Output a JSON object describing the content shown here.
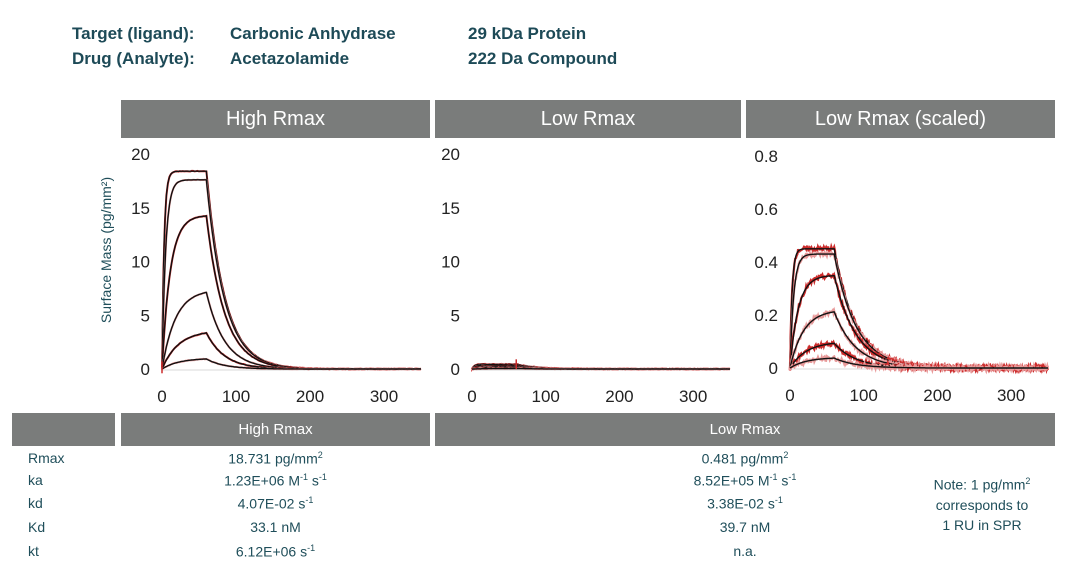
{
  "header": {
    "target_label": "Target (ligand):",
    "target_value": "Carbonic Anhydrase",
    "target_size": "29 kDa Protein",
    "drug_label": "Drug (Analyte):",
    "drug_value": "Acetazolamide",
    "drug_size": "222 Da Compound"
  },
  "y_axis_label": "Surface Mass (pg/mm²)",
  "chart_data": [
    {
      "type": "line",
      "title": "High Rmax",
      "xlabel": "",
      "ylabel": "Surface Mass (pg/mm²)",
      "xlim": [
        0,
        350
      ],
      "ylim": [
        0,
        20
      ],
      "xticks": [
        "0",
        "100",
        "200",
        "300"
      ],
      "yticks": [
        "0",
        "5",
        "10",
        "15",
        "20"
      ],
      "assoc_end": 60,
      "kd": 0.0407,
      "curves": [
        {
          "plateau": 18.4,
          "rate": 0.35
        },
        {
          "plateau": 17.6,
          "rate": 0.2
        },
        {
          "plateau": 14.3,
          "rate": 0.09
        },
        {
          "plateau": 7.4,
          "rate": 0.055
        },
        {
          "plateau": 3.6,
          "rate": 0.045
        },
        {
          "plateau": 1.0,
          "rate": 0.045
        }
      ]
    },
    {
      "type": "line",
      "title": "Low Rmax",
      "xlabel": "",
      "ylabel": "",
      "xlim": [
        0,
        350
      ],
      "ylim": [
        0,
        20
      ],
      "xticks": [
        "0",
        "100",
        "200",
        "300"
      ],
      "yticks": [
        "0",
        "5",
        "10",
        "15",
        "20"
      ],
      "assoc_end": 60,
      "kd": 0.0338,
      "curves": [
        {
          "plateau": 0.45,
          "rate": 0.3
        },
        {
          "plateau": 0.42,
          "rate": 0.15
        },
        {
          "plateau": 0.3,
          "rate": 0.08
        },
        {
          "plateau": 0.2,
          "rate": 0.05
        },
        {
          "plateau": 0.1,
          "rate": 0.05
        },
        {
          "plateau": 0.05,
          "rate": 0.05
        }
      ]
    },
    {
      "type": "line",
      "title": "Low Rmax (scaled)",
      "xlabel": "",
      "ylabel": "",
      "xlim": [
        0,
        350
      ],
      "ylim": [
        0,
        0.8
      ],
      "xticks": [
        "0",
        "100",
        "200",
        "300"
      ],
      "yticks": [
        "0",
        "0.2",
        "0.4",
        "0.6",
        "0.8"
      ],
      "assoc_end": 60,
      "kd": 0.0338,
      "curves": [
        {
          "plateau": 0.45,
          "rate": 0.35
        },
        {
          "plateau": 0.43,
          "rate": 0.2
        },
        {
          "plateau": 0.35,
          "rate": 0.09
        },
        {
          "plateau": 0.22,
          "rate": 0.055
        },
        {
          "plateau": 0.1,
          "rate": 0.045
        },
        {
          "plateau": 0.04,
          "rate": 0.045
        }
      ]
    }
  ],
  "table": {
    "header_high": "High Rmax",
    "header_low": "Low Rmax",
    "rows": [
      {
        "label": "Rmax",
        "high": "18.731 pg/mm",
        "high_sup": "2",
        "low": "0.481 pg/mm",
        "low_sup": "2"
      },
      {
        "label": "ka",
        "high": "1.23E+06 M",
        "high_sup": "-1",
        "high_tail": " s",
        "high_sup2": "-1",
        "low": "8.52E+05 M",
        "low_sup": "-1",
        "low_tail": " s",
        "low_sup2": "-1"
      },
      {
        "label": "kd",
        "high": "4.07E-02 s",
        "high_sup": "-1",
        "low": "3.38E-02 s",
        "low_sup": "-1"
      },
      {
        "label": "Kd",
        "high": "33.1 nM",
        "low": "39.7 nM"
      },
      {
        "label": "kt",
        "high": "6.12E+06 s",
        "high_sup": "-1",
        "low": "n.a."
      }
    ],
    "note_line1": "Note: 1 pg/mm",
    "note_sup": "2",
    "note_line2": "corresponds to",
    "note_line3": "1 RU in SPR"
  },
  "colors": {
    "header_text": "#1d4a57",
    "bar_bg": "#7a7c7b",
    "fit_line": "#111111",
    "data_red": "#cc2b2b",
    "data_pink": "#e89a9a"
  }
}
